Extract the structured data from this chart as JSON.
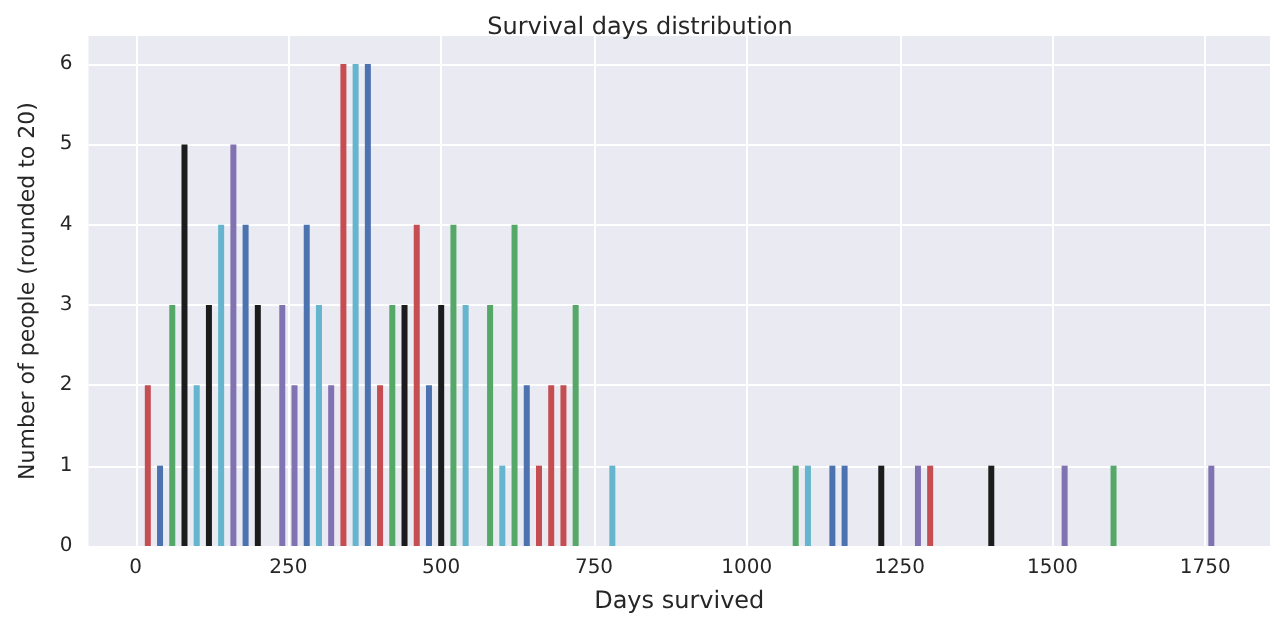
{
  "chart_data": {
    "type": "bar",
    "title": "Survival days distribution",
    "xlabel": "Days survived",
    "ylabel": "Number of people (rounded to 20)",
    "x": [
      20,
      40,
      60,
      80,
      100,
      120,
      140,
      160,
      180,
      200,
      240,
      260,
      280,
      300,
      320,
      340,
      360,
      380,
      400,
      420,
      440,
      460,
      480,
      500,
      520,
      540,
      580,
      600,
      620,
      640,
      660,
      680,
      700,
      720,
      780,
      1080,
      1100,
      1140,
      1160,
      1220,
      1280,
      1300,
      1400,
      1520,
      1600,
      1760
    ],
    "values": [
      2,
      1,
      3,
      5,
      2,
      3,
      4,
      5,
      4,
      3,
      3,
      2,
      4,
      3,
      2,
      6,
      6,
      6,
      2,
      3,
      3,
      4,
      2,
      3,
      4,
      3,
      3,
      1,
      4,
      2,
      1,
      2,
      2,
      3,
      1,
      1,
      1,
      1,
      1,
      1,
      1,
      1,
      1,
      1,
      1,
      1
    ],
    "colors": [
      "#c44e52",
      "#4c72b0",
      "#55a868",
      "#1c1c1c",
      "#64b5cd",
      "#1c1c1c",
      "#64b5cd",
      "#8172b2",
      "#4c72b0",
      "#1c1c1c",
      "#8172b2",
      "#8172b2",
      "#4c72b0",
      "#64b5cd",
      "#8172b2",
      "#c44e52",
      "#64b5cd",
      "#4c72b0",
      "#c44e52",
      "#55a868",
      "#1c1c1c",
      "#c44e52",
      "#4c72b0",
      "#1c1c1c",
      "#55a868",
      "#64b5cd",
      "#55a868",
      "#64b5cd",
      "#55a868",
      "#4c72b0",
      "#c44e52",
      "#c44e52",
      "#c44e52",
      "#55a868",
      "#64b5cd",
      "#55a868",
      "#64b5cd",
      "#4c72b0",
      "#4c72b0",
      "#1c1c1c",
      "#8172b2",
      "#c44e52",
      "#1c1c1c",
      "#8172b2",
      "#55a868",
      "#8172b2"
    ],
    "xlim": [
      -77,
      1856
    ],
    "xticks": [
      0,
      250,
      500,
      750,
      1000,
      1250,
      1500,
      1750
    ],
    "ylim": [
      0,
      6.35
    ],
    "yticks": [
      0,
      1,
      2,
      3,
      4,
      5,
      6
    ],
    "grid": true
  }
}
